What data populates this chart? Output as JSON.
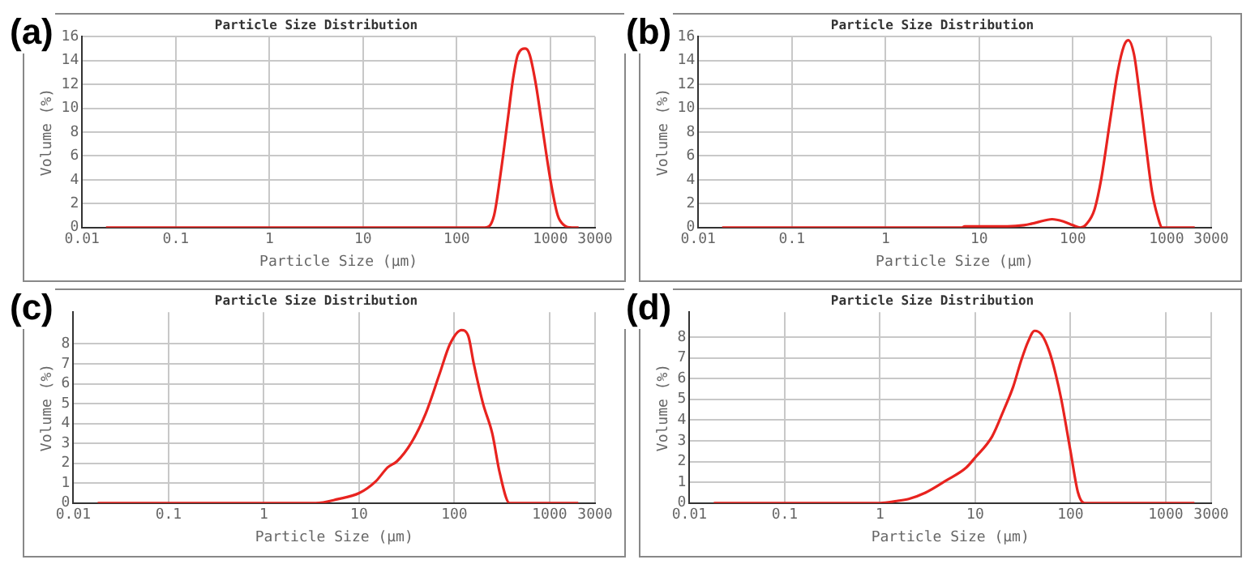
{
  "chart_data": [
    {
      "type": "line",
      "title": "Particle Size Distribution",
      "xlabel": "Particle Size (μm)",
      "ylabel": "Volume (%)",
      "annotations": [
        "(a)"
      ],
      "log": "x",
      "grid": true,
      "xlim": [
        0.01,
        3000
      ],
      "xticks": [
        0.01,
        0.1,
        1,
        10,
        100,
        1000,
        3000
      ],
      "ylim": [
        0,
        16
      ],
      "yticks": [
        0,
        2,
        4,
        6,
        8,
        10,
        12,
        14,
        16
      ],
      "series": [
        {
          "color": "#e8231f",
          "x": [
            0.018,
            200,
            250,
            300,
            350,
            400,
            450,
            540,
            600,
            700,
            800,
            1000,
            1200,
            1400,
            1700,
            2000
          ],
          "values": [
            0,
            0,
            1,
            5,
            9,
            12.5,
            14.5,
            15,
            14.5,
            12,
            9,
            4,
            1,
            0.2,
            0,
            0
          ]
        }
      ]
    },
    {
      "type": "line",
      "title": "Particle Size Distribution",
      "xlabel": "Particle Size (μm)",
      "ylabel": "Volume (%)",
      "annotations": [
        "(b)"
      ],
      "log": "x",
      "grid": true,
      "xlim": [
        0.01,
        3000
      ],
      "xticks": [
        0.01,
        0.1,
        1,
        10,
        100,
        1000,
        3000
      ],
      "ylim": [
        0,
        16
      ],
      "yticks": [
        0,
        2,
        4,
        6,
        8,
        10,
        12,
        14,
        16
      ],
      "series": [
        {
          "color": "#e8231f",
          "x": [
            0.018,
            6.5,
            7,
            20,
            30,
            40,
            60,
            80,
            100,
            120,
            140,
            170,
            200,
            250,
            300,
            350,
            390,
            450,
            500,
            600,
            700,
            800,
            900,
            2000
          ],
          "values": [
            0,
            0,
            0.1,
            0.1,
            0.2,
            0.4,
            0.7,
            0.5,
            0.2,
            0,
            0.3,
            1.5,
            4,
            9,
            13,
            15.2,
            15.7,
            14.5,
            12,
            7,
            3,
            1,
            0,
            0
          ]
        }
      ]
    },
    {
      "type": "line",
      "title": "Particle Size Distribution",
      "xlabel": "Particle Size (μm)",
      "ylabel": "Volume (%)",
      "annotations": [
        "(c)"
      ],
      "log": "x",
      "grid": true,
      "xlim": [
        0.01,
        3000
      ],
      "xticks": [
        0.01,
        0.1,
        1,
        10,
        100,
        1000,
        3000
      ],
      "ylim": [
        0,
        9.6
      ],
      "yticks": [
        0,
        1,
        2,
        3,
        4,
        5,
        6,
        7,
        8
      ],
      "series": [
        {
          "color": "#e8231f",
          "x": [
            0.018,
            3.5,
            6,
            10,
            15,
            20,
            25,
            35,
            50,
            70,
            90,
            119,
            140,
            160,
            200,
            250,
            300,
            380,
            2000
          ],
          "values": [
            0,
            0,
            0.2,
            0.5,
            1.1,
            1.8,
            2.1,
            3,
            4.5,
            6.5,
            8,
            8.7,
            8.4,
            7,
            5,
            3.5,
            1.5,
            0,
            0
          ]
        }
      ]
    },
    {
      "type": "line",
      "title": "Particle Size Distribution",
      "xlabel": "Particle Size (μm)",
      "ylabel": "Volume (%)",
      "annotations": [
        "(d)"
      ],
      "log": "x",
      "grid": true,
      "xlim": [
        0.01,
        3000
      ],
      "xticks": [
        0.01,
        0.1,
        1,
        10,
        100,
        1000,
        3000
      ],
      "ylim": [
        0,
        9.2
      ],
      "yticks": [
        0,
        1,
        2,
        3,
        4,
        5,
        6,
        7,
        8
      ],
      "series": [
        {
          "color": "#e8231f",
          "x": [
            0.018,
            1,
            1.5,
            2,
            3,
            5,
            8,
            10,
            15,
            20,
            25,
            30,
            36,
            42,
            50,
            60,
            70,
            80,
            100,
            120,
            140,
            2000
          ],
          "values": [
            0,
            0,
            0.1,
            0.2,
            0.5,
            1.1,
            1.7,
            2.2,
            3.2,
            4.5,
            5.6,
            6.8,
            7.8,
            8.3,
            8.1,
            7.3,
            6.2,
            5,
            2.5,
            0.5,
            0,
            0
          ]
        }
      ]
    }
  ]
}
